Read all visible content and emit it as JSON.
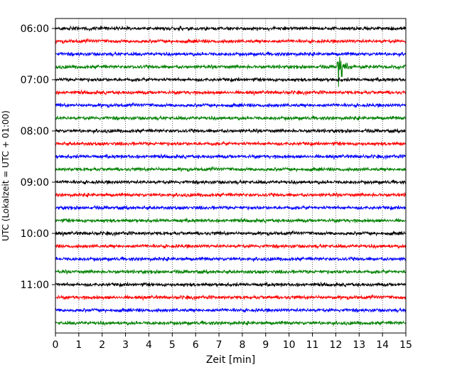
{
  "chart_data": {
    "type": "line",
    "title": "",
    "xlabel": "Zeit  [min]",
    "ylabel": "UTC (Lokalzeit = UTC + 01:00)",
    "xlim": [
      0,
      15
    ],
    "x_ticks": [
      0,
      1,
      2,
      3,
      4,
      5,
      6,
      7,
      8,
      9,
      10,
      11,
      12,
      13,
      14,
      15
    ],
    "y_ticks": [
      "06:00",
      "07:00",
      "08:00",
      "09:00",
      "10:00",
      "11:00"
    ],
    "grid": "vertical dotted",
    "trace_interval_minutes": 15,
    "trace_start": "06:00",
    "trace_count": 24,
    "trace_colors": [
      "#000000",
      "#ff0000",
      "#0000ff",
      "#008000"
    ],
    "event": {
      "trace_start": "06:45",
      "time_min": 12.1,
      "color": "#008000"
    }
  }
}
